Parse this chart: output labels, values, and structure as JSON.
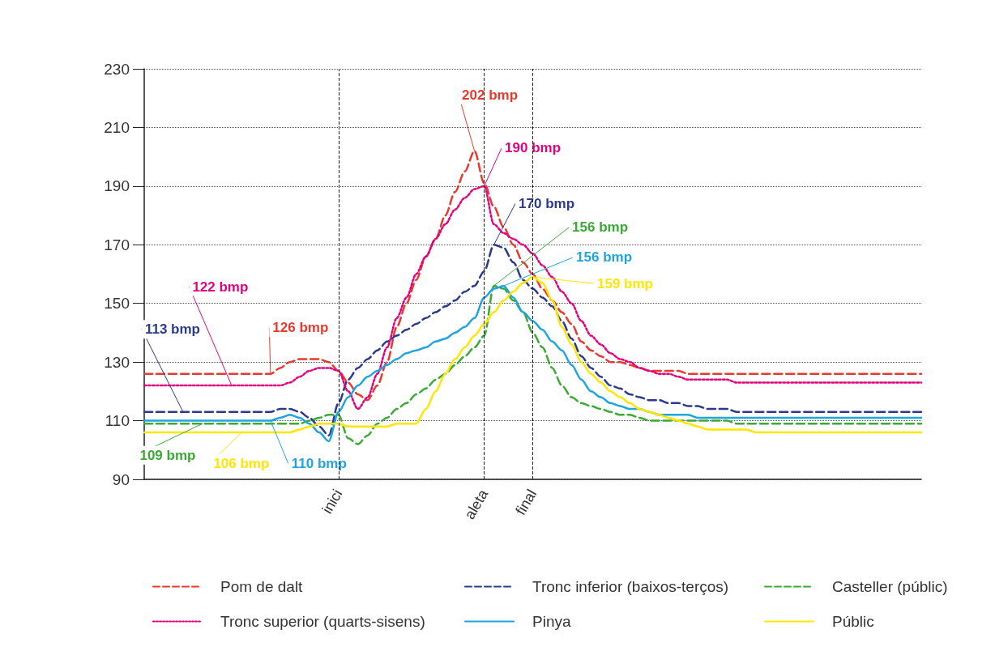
{
  "chart_data": {
    "type": "line",
    "categories": [
      null,
      null,
      null,
      null,
      null,
      null,
      null,
      null,
      null,
      null,
      null,
      null,
      null,
      null,
      null,
      null,
      null,
      null,
      null,
      null,
      "inici",
      null,
      null,
      null,
      null,
      null,
      null,
      null,
      null,
      null,
      null,
      null,
      null,
      null,
      null,
      "aleta",
      null,
      null,
      null,
      null,
      "final",
      null,
      null,
      null,
      null,
      null,
      null,
      null,
      null,
      null,
      null,
      null,
      null,
      null,
      null,
      null,
      null,
      null,
      null,
      null,
      null,
      null,
      null,
      null,
      null,
      null,
      null,
      null,
      null,
      null,
      null,
      null,
      null,
      null,
      null,
      null,
      null,
      null,
      null,
      null,
      null
    ],
    "ylim": [
      90,
      230
    ],
    "yticks": [
      90,
      110,
      130,
      150,
      170,
      190,
      210,
      230
    ],
    "grid": "y",
    "legend": "bottom",
    "marker": "none",
    "ref_lines": [
      {
        "axis": "x",
        "value": "inici",
        "label": null,
        "line_style": "dashed"
      },
      {
        "axis": "x",
        "value": "aleta",
        "label": null,
        "line_style": "dashed"
      },
      {
        "axis": "x",
        "value": "final",
        "label": null,
        "line_style": "dashed"
      }
    ],
    "series": [
      {
        "name": "Pom de dalt",
        "color": "#e8392f",
        "line_style": "dashed",
        "values": [
          126,
          126,
          126,
          126,
          126,
          126,
          126,
          126,
          126,
          126,
          126,
          126,
          126,
          126,
          128,
          130,
          131,
          131,
          131,
          130,
          127,
          123,
          119,
          117,
          122,
          130,
          142,
          150,
          158,
          166,
          172,
          180,
          188,
          195,
          202,
          191,
          183,
          176,
          170,
          164,
          160,
          155,
          151,
          147,
          143,
          137,
          134,
          132,
          130,
          130,
          129,
          128,
          127,
          127,
          127,
          127,
          126,
          126,
          126,
          126,
          126,
          126,
          126,
          126,
          126,
          126,
          126,
          126,
          126,
          126,
          126,
          126,
          126,
          126,
          126,
          126,
          126,
          126,
          126,
          126,
          126
        ],
        "value_labels": [
          null,
          null,
          null,
          null,
          null,
          null,
          null,
          null,
          null,
          null,
          null,
          null,
          null,
          "126 bmp",
          null,
          null,
          null,
          null,
          null,
          null,
          null,
          null,
          null,
          null,
          null,
          null,
          null,
          null,
          null,
          null,
          null,
          null,
          null,
          null,
          "202 bmp",
          null,
          null,
          null,
          null,
          null,
          null,
          null,
          null,
          null,
          null,
          null,
          null,
          null,
          null,
          null,
          null,
          null,
          null,
          null,
          null,
          null,
          null,
          null,
          null,
          null,
          null,
          null,
          null,
          null,
          null,
          null,
          null,
          null,
          null,
          null,
          null,
          null,
          null,
          null,
          null,
          null,
          null,
          null,
          null,
          null,
          null
        ]
      },
      {
        "name": "Tronc inferior (baixos-terços)",
        "color": "#2b3a8c",
        "line_style": "dashed",
        "values": [
          113,
          113,
          113,
          113,
          113,
          113,
          113,
          113,
          113,
          113,
          113,
          113,
          113,
          113,
          114,
          114,
          113,
          111,
          108,
          105,
          116,
          124,
          128,
          131,
          134,
          137,
          139,
          141,
          143,
          145,
          147,
          149,
          151,
          154,
          156,
          161,
          170,
          169,
          164,
          158,
          155,
          152,
          149,
          144,
          138,
          132,
          128,
          125,
          122,
          121,
          119,
          118,
          117,
          117,
          116,
          116,
          115,
          115,
          114,
          114,
          114,
          113,
          113,
          113,
          113,
          113,
          113,
          113,
          113,
          113,
          113,
          113,
          113,
          113,
          113,
          113,
          113,
          113,
          113,
          113,
          113
        ],
        "value_labels": [
          null,
          null,
          null,
          null,
          "113 bmp",
          null,
          null,
          null,
          null,
          null,
          null,
          null,
          null,
          null,
          null,
          null,
          null,
          null,
          null,
          null,
          null,
          null,
          null,
          null,
          null,
          null,
          null,
          null,
          null,
          null,
          null,
          null,
          null,
          null,
          null,
          null,
          "170 bmp",
          null,
          null,
          null,
          null,
          null,
          null,
          null,
          null,
          null,
          null,
          null,
          null,
          null,
          null,
          null,
          null,
          null,
          null,
          null,
          null,
          null,
          null,
          null,
          null,
          null,
          null,
          null,
          null,
          null,
          null,
          null,
          null,
          null,
          null,
          null,
          null,
          null,
          null,
          null,
          null,
          null,
          null,
          null,
          null
        ]
      },
      {
        "name": "Casteller (públic)",
        "color": "#3aaa35",
        "line_style": "dashed",
        "values": [
          109,
          109,
          109,
          109,
          109,
          109,
          109,
          109,
          109,
          109,
          109,
          109,
          109,
          109,
          109,
          109,
          109,
          110,
          111,
          112,
          112,
          104,
          102,
          105,
          109,
          111,
          114,
          116,
          119,
          121,
          124,
          126,
          129,
          132,
          135,
          139,
          156,
          155,
          151,
          147,
          140,
          135,
          128,
          122,
          118,
          116,
          115,
          114,
          113,
          112,
          112,
          111,
          110,
          110,
          110,
          110,
          110,
          110,
          110,
          110,
          110,
          109,
          109,
          109,
          109,
          109,
          109,
          109,
          109,
          109,
          109,
          109,
          109,
          109,
          109,
          109,
          109,
          109,
          109,
          109,
          109
        ],
        "value_labels": [
          null,
          null,
          null,
          null,
          null,
          null,
          "109 bmp",
          null,
          null,
          null,
          null,
          null,
          null,
          null,
          null,
          null,
          null,
          null,
          null,
          null,
          null,
          null,
          null,
          null,
          null,
          null,
          null,
          null,
          null,
          null,
          null,
          null,
          null,
          null,
          null,
          null,
          "156 bmp",
          null,
          null,
          null,
          null,
          null,
          null,
          null,
          null,
          null,
          null,
          null,
          null,
          null,
          null,
          null,
          null,
          null,
          null,
          null,
          null,
          null,
          null,
          null,
          null,
          null,
          null,
          null,
          null,
          null,
          null,
          null,
          null,
          null,
          null,
          null,
          null,
          null,
          null,
          null,
          null,
          null,
          null,
          null,
          null
        ]
      },
      {
        "name": "Tronc superior (quarts-sisens)",
        "color": "#e6007e",
        "line_style": "dotted",
        "values": [
          122,
          122,
          122,
          122,
          122,
          122,
          122,
          122,
          122,
          122,
          122,
          122,
          122,
          122,
          122,
          123,
          125,
          127,
          128,
          128,
          127,
          120,
          114,
          118,
          126,
          135,
          145,
          152,
          160,
          166,
          172,
          177,
          182,
          186,
          189,
          190,
          177,
          174,
          172,
          170,
          167,
          163,
          159,
          154,
          150,
          144,
          139,
          136,
          133,
          131,
          130,
          128,
          127,
          126,
          126,
          125,
          124,
          124,
          124,
          124,
          124,
          123,
          123,
          123,
          123,
          123,
          123,
          123,
          123,
          123,
          123,
          123,
          123,
          123,
          123,
          123,
          123,
          123,
          123,
          123,
          123
        ],
        "value_labels": [
          null,
          null,
          null,
          null,
          null,
          null,
          null,
          null,
          null,
          "122 bmp",
          null,
          null,
          null,
          null,
          null,
          null,
          null,
          null,
          null,
          null,
          null,
          null,
          null,
          null,
          null,
          null,
          null,
          null,
          null,
          null,
          null,
          null,
          null,
          null,
          null,
          "190 bmp",
          null,
          null,
          null,
          null,
          null,
          null,
          null,
          null,
          null,
          null,
          null,
          null,
          null,
          null,
          null,
          null,
          null,
          null,
          null,
          null,
          null,
          null,
          null,
          null,
          null,
          null,
          null,
          null,
          null,
          null,
          null,
          null,
          null,
          null,
          null,
          null,
          null,
          null,
          null,
          null,
          null,
          null,
          null,
          null,
          null
        ]
      },
      {
        "name": "Pinya",
        "color": "#1ea5e0",
        "line_style": "solid",
        "values": [
          110,
          110,
          110,
          110,
          110,
          110,
          110,
          110,
          110,
          110,
          110,
          110,
          110,
          110,
          111,
          112,
          111,
          109,
          106,
          103,
          113,
          118,
          122,
          125,
          127,
          129,
          131,
          133,
          134,
          135,
          137,
          138,
          140,
          142,
          145,
          152,
          155,
          156,
          152,
          147,
          144,
          141,
          137,
          134,
          129,
          124,
          120,
          118,
          116,
          115,
          114,
          114,
          113,
          112,
          112,
          112,
          112,
          111,
          111,
          111,
          111,
          111,
          111,
          111,
          111,
          111,
          111,
          111,
          111,
          111,
          111,
          111,
          111,
          111,
          111,
          111,
          111,
          111,
          111,
          111,
          111
        ],
        "value_labels": [
          null,
          null,
          null,
          null,
          null,
          null,
          null,
          null,
          null,
          null,
          null,
          null,
          null,
          "110 bmp",
          null,
          null,
          null,
          null,
          null,
          null,
          null,
          null,
          null,
          null,
          null,
          null,
          null,
          null,
          null,
          null,
          null,
          null,
          null,
          null,
          null,
          null,
          null,
          "156 bmp",
          null,
          null,
          null,
          null,
          null,
          null,
          null,
          null,
          null,
          null,
          null,
          null,
          null,
          null,
          null,
          null,
          null,
          null,
          null,
          null,
          null,
          null,
          null,
          null,
          null,
          null,
          null,
          null,
          null,
          null,
          null,
          null,
          null,
          null,
          null,
          null,
          null,
          null,
          null,
          null,
          null,
          null,
          null
        ]
      },
      {
        "name": "Públic",
        "color": "#ffe600",
        "line_style": "solid",
        "values": [
          106,
          106,
          106,
          106,
          106,
          106,
          106,
          106,
          106,
          106,
          106,
          106,
          106,
          106,
          106,
          106,
          107,
          108,
          109,
          109,
          109,
          108,
          108,
          108,
          108,
          108,
          109,
          109,
          109,
          114,
          120,
          126,
          131,
          135,
          139,
          143,
          147,
          151,
          154,
          157,
          159,
          157,
          151,
          142,
          136,
          130,
          126,
          123,
          120,
          118,
          116,
          114,
          113,
          112,
          111,
          110,
          109,
          108,
          107,
          107,
          107,
          107,
          107,
          106,
          106,
          106,
          106,
          106,
          106,
          106,
          106,
          106,
          106,
          106,
          106,
          106,
          106,
          106,
          106,
          106,
          106
        ],
        "value_labels": [
          null,
          null,
          null,
          null,
          null,
          null,
          null,
          null,
          null,
          null,
          "106 bmp",
          null,
          null,
          null,
          null,
          null,
          null,
          null,
          null,
          null,
          null,
          null,
          null,
          null,
          null,
          null,
          null,
          null,
          null,
          null,
          null,
          null,
          null,
          null,
          null,
          null,
          null,
          null,
          null,
          null,
          "159 bmp",
          null,
          null,
          null,
          null,
          null,
          null,
          null,
          null,
          null,
          null,
          null,
          null,
          null,
          null,
          null,
          null,
          null,
          null,
          null,
          null,
          null,
          null,
          null,
          null,
          null,
          null,
          null,
          null,
          null,
          null,
          null,
          null,
          null,
          null,
          null,
          null,
          null,
          null,
          null,
          null
        ]
      }
    ]
  }
}
